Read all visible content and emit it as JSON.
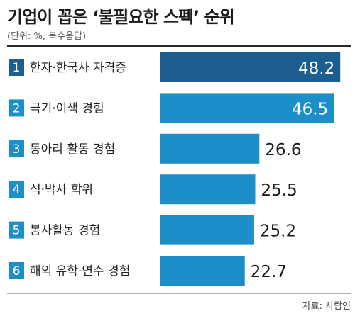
{
  "title": "기업이 꼽은 ‘불필요한 스펙’ 순위",
  "subtitle": "(단위: %, 복수응답)",
  "source": "자료: 사람인",
  "colors": {
    "bar_top": "#1d5e91",
    "bar": "#1c8fc8",
    "rank_box": "#1c8fc8",
    "rank_box_top": "#1d5e91",
    "value_inside": "#ffffff",
    "value_outside": "#1a1a1a"
  },
  "chart_data": {
    "type": "bar",
    "orientation": "horizontal",
    "title": "기업이 꼽은 ‘불필요한 스펙’ 순위",
    "subtitle": "(단위: %, 복수응답)",
    "unit": "%",
    "ranks": [
      "1",
      "2",
      "3",
      "4",
      "5",
      "6"
    ],
    "categories": [
      "한자·한국사 자격증",
      "극기·이색 경험",
      "동아리 활동 경험",
      "석·박사 학위",
      "봉사활동 경험",
      "해외 유학·연수 경험"
    ],
    "values": [
      48.2,
      46.5,
      26.6,
      25.5,
      25.2,
      22.7
    ],
    "value_labels": [
      "48.2",
      "46.5",
      "26.6",
      "25.5",
      "25.2",
      "22.7"
    ],
    "xlim": [
      0,
      51
    ],
    "grid": false,
    "legend": "none"
  }
}
